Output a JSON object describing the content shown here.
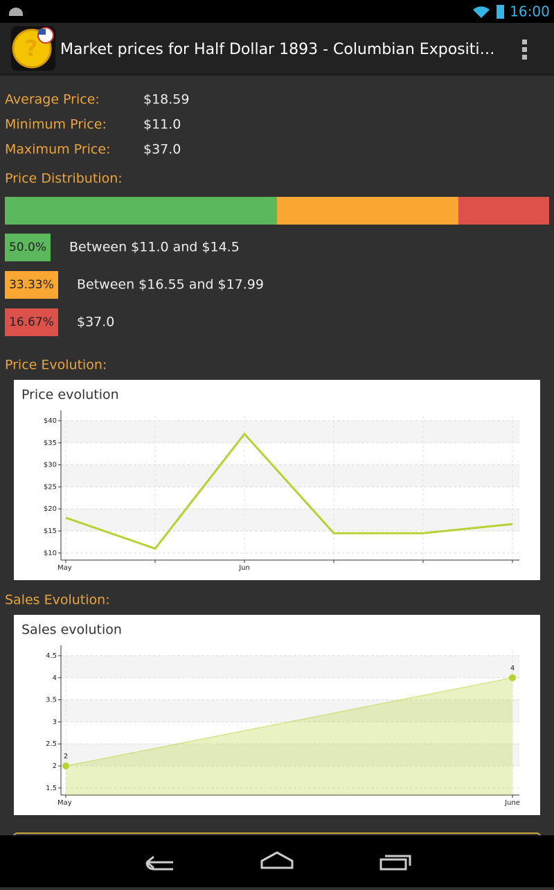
{
  "status_bar": {
    "time": "16:00"
  },
  "app_bar": {
    "title": "Market prices for Half Dollar 1893 - Columbian Expositi…"
  },
  "stats": [
    {
      "label": "Average Price:",
      "value": "$18.59"
    },
    {
      "label": "Minimum Price:",
      "value": "$11.0"
    },
    {
      "label": "Maximum Price:",
      "value": "$37.0"
    }
  ],
  "distribution": {
    "label": "Price Distribution:",
    "segments": [
      {
        "percent": 50.0,
        "percent_label": "50.0%",
        "range": "Between $11.0 and $14.5",
        "color": "#5cb85c"
      },
      {
        "percent": 33.33,
        "percent_label": "33.33%",
        "range": "Between $16.55 and $17.99",
        "color": "#f9a732"
      },
      {
        "percent": 16.67,
        "percent_label": "16.67%",
        "range": "$37.0",
        "color": "#dd514b"
      }
    ]
  },
  "price_section": {
    "label": "Price Evolution:",
    "chart_data": {
      "type": "line",
      "title": "Price evolution",
      "categories": [
        "May",
        null,
        "Jun",
        null,
        null,
        null
      ],
      "values": [
        18,
        11,
        37,
        14.5,
        14.5,
        16.55
      ],
      "color": "#b5d334",
      "ylim": [
        8.4,
        41.1
      ],
      "yticks": [
        {
          "value": 10,
          "label": "$10"
        },
        {
          "value": 15,
          "label": "$15"
        },
        {
          "value": 20,
          "label": "$20"
        },
        {
          "value": 25,
          "label": "$25"
        },
        {
          "value": 30,
          "label": "$30"
        },
        {
          "value": 35,
          "label": "$35"
        },
        {
          "value": 40,
          "label": "$40"
        }
      ],
      "grid": true
    }
  },
  "sales_section": {
    "label": "Sales Evolution:",
    "chart_data": {
      "type": "area",
      "title": "Sales evolution",
      "categories": [
        "May",
        "June"
      ],
      "values": [
        2,
        4
      ],
      "color": "#b5d334",
      "ylim": [
        1.34,
        4.61
      ],
      "yticks": [
        1.5,
        2,
        2.5,
        3,
        3.5,
        4,
        4.5
      ],
      "grid": true
    }
  }
}
